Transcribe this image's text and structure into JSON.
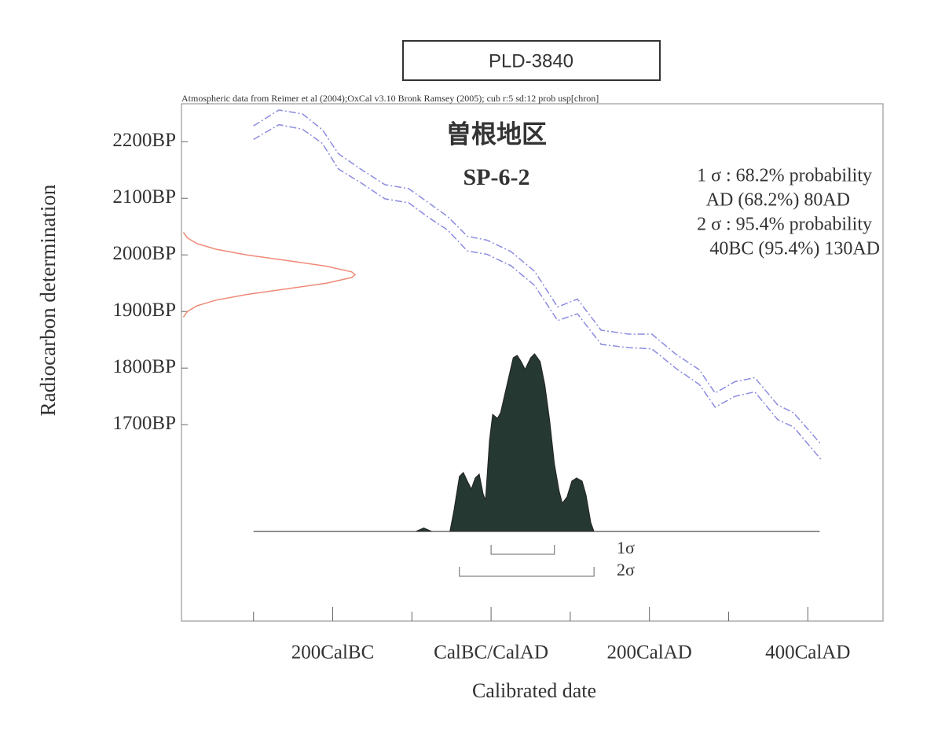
{
  "chart_data": {
    "type": "calibration",
    "header": "PLD-3840",
    "subtitle": "Atmospheric data from Reimer et al (2004);OxCal v3.10 Bronk Ramsey (2005); cub r:5 sd:12 prob usp[chron]",
    "title": "曽根地区",
    "sample": "SP-6-2",
    "info": [
      "1 σ  : 68.2% probability",
      "AD (68.2%) 80AD",
      "2 σ  : 95.4% probability",
      "40BC (95.4%) 130AD"
    ],
    "x_label": "Calibrated date",
    "y_label": "Radiocarbon determination",
    "xlim": [
      -391,
      495
    ],
    "ylim": [
      1353,
      2267
    ],
    "xticks": [
      {
        "value": -200,
        "label": "200CalBC"
      },
      {
        "value": 0,
        "label": "CalBC/CalAD"
      },
      {
        "value": 200,
        "label": "200CalAD"
      },
      {
        "value": 400,
        "label": "400CalAD"
      }
    ],
    "xminor_ticks": [
      -300,
      -100,
      100,
      300
    ],
    "yticks": [
      {
        "value": 2200,
        "label": "2200BP"
      },
      {
        "value": 2100,
        "label": "2100BP"
      },
      {
        "value": 2000,
        "label": "2000BP"
      },
      {
        "value": 1900,
        "label": "1900BP"
      },
      {
        "value": 1800,
        "label": "1800BP"
      },
      {
        "value": 1700,
        "label": "1700BP"
      }
    ],
    "calibration": {
      "x": [
        -300,
        -268,
        -238,
        -213,
        -193,
        -164,
        -134,
        -104,
        -79,
        -55,
        -30,
        -5,
        25,
        55,
        84,
        109,
        139,
        174,
        203,
        233,
        263,
        283,
        308,
        333,
        362,
        382,
        417
      ],
      "series": [
        {
          "color": "#8c8ce0",
          "values": [
            2228,
            2256,
            2249,
            2221,
            2179,
            2151,
            2124,
            2117,
            2092,
            2068,
            2033,
            2026,
            2006,
            1971,
            1908,
            1922,
            1867,
            1860,
            1860,
            1825,
            1797,
            1756,
            1776,
            1783,
            1735,
            1721,
            1665
          ]
        },
        {
          "color": "#8c8ce0",
          "values": [
            2204,
            2230,
            2222,
            2197,
            2152,
            2127,
            2099,
            2092,
            2066,
            2044,
            2007,
            2001,
            1981,
            1946,
            1884,
            1896,
            1842,
            1836,
            1834,
            1800,
            1771,
            1731,
            1750,
            1758,
            1709,
            1696,
            1638
          ]
        }
      ]
    },
    "measured": {
      "color": "#f08a78",
      "bp": [
        2040,
        2030,
        2020,
        2010,
        2000,
        1990,
        1980,
        1970,
        1965,
        1960,
        1950,
        1940,
        1930,
        1920,
        1910,
        1900,
        1890
      ],
      "density": [
        0.011,
        0.034,
        0.089,
        0.198,
        0.375,
        0.607,
        0.835,
        0.98,
        1,
        0.98,
        0.835,
        0.607,
        0.375,
        0.198,
        0.089,
        0.034,
        0.011
      ]
    },
    "calibrated": {
      "color": "#263832",
      "x": [
        -300,
        -95,
        -85,
        -75,
        -52,
        -47,
        -40,
        -35,
        -30,
        -25,
        -20,
        -15,
        -10,
        -7,
        -2,
        2,
        8,
        12,
        20,
        28,
        33,
        38,
        43,
        50,
        55,
        62,
        68,
        74,
        80,
        86,
        90,
        96,
        102,
        108,
        115,
        120,
        126,
        130,
        415
      ],
      "density": [
        0,
        0,
        0.02,
        0,
        0,
        0.115,
        0.31,
        0.332,
        0.283,
        0.239,
        0.301,
        0.323,
        0.212,
        0.177,
        0.513,
        0.659,
        0.637,
        0.668,
        0.823,
        0.978,
        0.991,
        0.956,
        0.912,
        0.978,
        1,
        0.956,
        0.823,
        0.624,
        0.381,
        0.226,
        0.159,
        0.195,
        0.283,
        0.301,
        0.283,
        0.204,
        0.049,
        0,
        0
      ]
    },
    "ranges": [
      {
        "label": "1σ",
        "from": 0,
        "to": 80
      },
      {
        "label": "2σ",
        "from": -40,
        "to": 130
      }
    ]
  }
}
